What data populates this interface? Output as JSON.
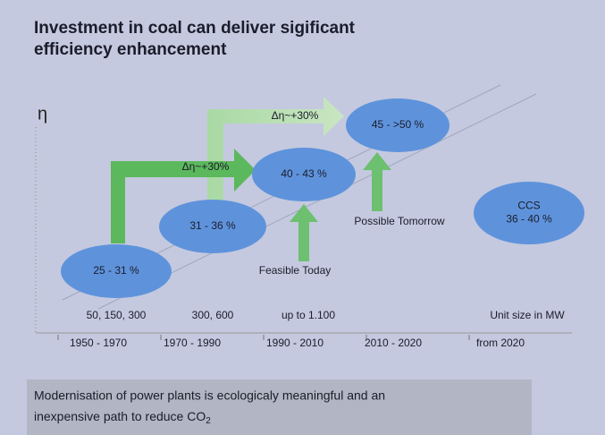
{
  "title": [
    "Investment in coal can deliver sigificant",
    "efficiency enhancement"
  ],
  "y_label": "η",
  "stages": [
    {
      "label": [
        "25 - 31 %"
      ]
    },
    {
      "label": [
        "31 - 36 %"
      ]
    },
    {
      "label": [
        "40 - 43 %"
      ]
    },
    {
      "label": [
        "45 - >50 %"
      ]
    },
    {
      "label": [
        "CCS",
        "36 - 40 %"
      ]
    }
  ],
  "arrows": [
    "Δη~+30%",
    "Δη~+30%"
  ],
  "annotations": [
    "Feasible Today",
    "Possible Tomorrow"
  ],
  "unit_sizes": [
    "50, 150, 300",
    "300, 600",
    "up to 1.100",
    "Unit size in MW"
  ],
  "periods": [
    "1950 - 1970",
    "1970 - 1990",
    "1990 - 2010",
    "2010 - 2020",
    "from 2020"
  ],
  "footer": {
    "lines": [
      "Modernisation of power plants is ecologicaly meaningful and an",
      "inexpensive path to reduce CO"
    ],
    "subscript": "2"
  }
}
